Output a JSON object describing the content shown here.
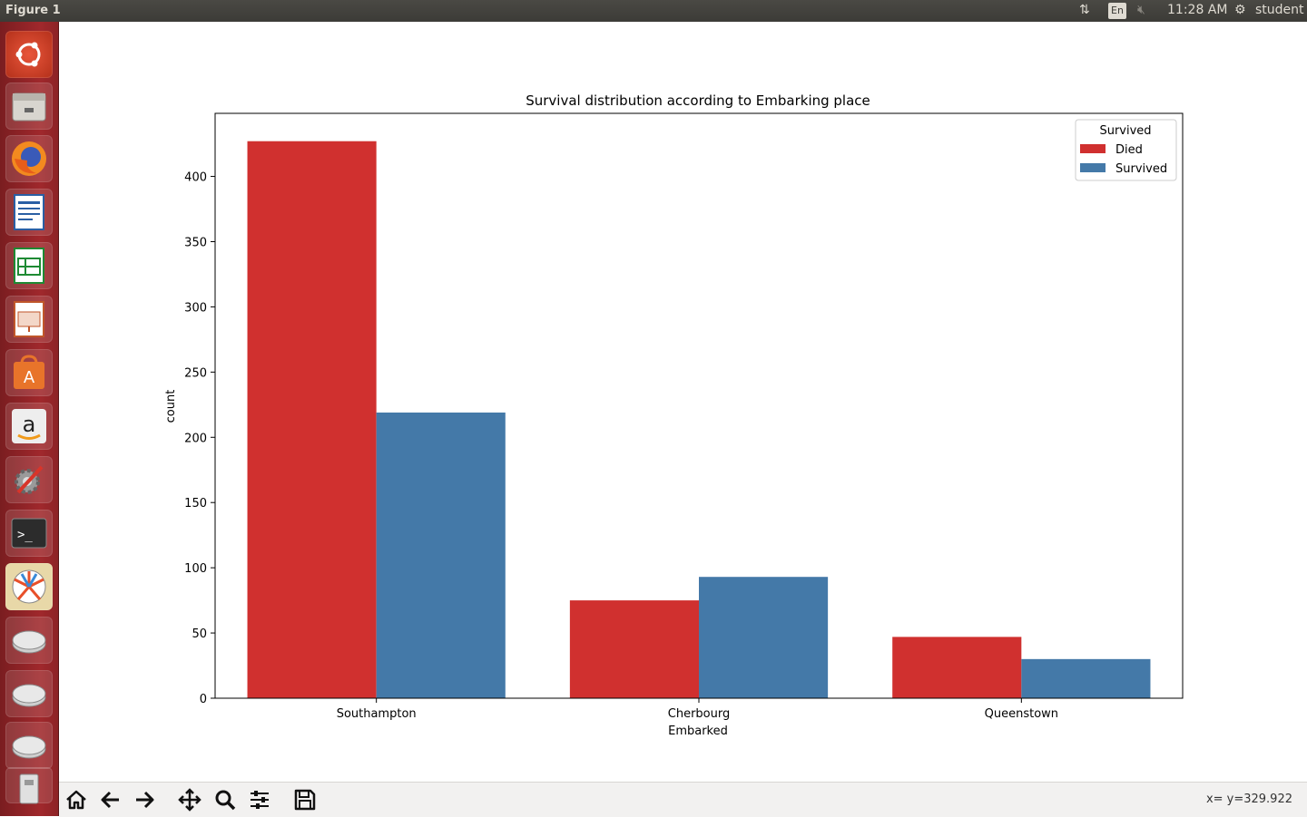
{
  "window": {
    "title": "Figure 1"
  },
  "tray": {
    "keyboard": "En",
    "time": "11:28 AM",
    "user": "student"
  },
  "launcher": {
    "items": [
      "Ubuntu dash",
      "Files",
      "Firefox",
      "LibreOffice Writer",
      "LibreOffice Calc",
      "LibreOffice Impress",
      "Ubuntu Software",
      "Amazon",
      "System Settings",
      "Terminal",
      "Matplotlib figure",
      "Drive",
      "Drive",
      "Drive",
      "USB drive"
    ]
  },
  "toolbar": {
    "buttons": [
      "home",
      "back",
      "forward",
      "pan",
      "zoom",
      "configure-subplots",
      "save"
    ],
    "coord_readout": "x= y=329.922"
  },
  "colors": {
    "died": "#d0302f",
    "survived": "#4479a8"
  },
  "chart_data": {
    "type": "bar",
    "title": "Survival distribution according to Embarking place",
    "xlabel": "Embarked",
    "ylabel": "count",
    "categories": [
      "Southampton",
      "Cherbourg",
      "Queenstown"
    ],
    "series": [
      {
        "name": "Died",
        "values": [
          427,
          75,
          47
        ]
      },
      {
        "name": "Survived",
        "values": [
          219,
          93,
          30
        ]
      }
    ],
    "yticks": [
      0,
      50,
      100,
      150,
      200,
      250,
      300,
      350,
      400
    ],
    "ylim": [
      0,
      448.35
    ],
    "legend": {
      "title": "Survived",
      "position": "top-right"
    }
  }
}
